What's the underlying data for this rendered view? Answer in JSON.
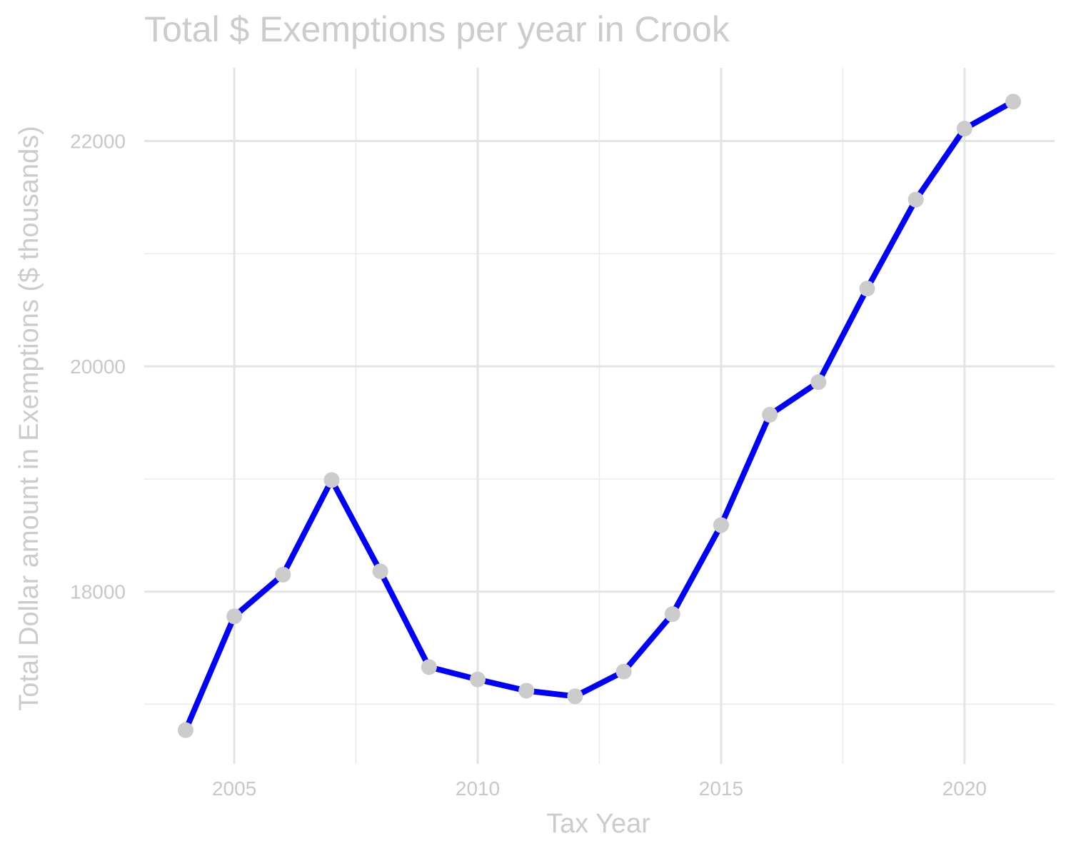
{
  "chart_data": {
    "type": "line",
    "title": "Total $ Exemptions per year in Crook",
    "xlabel": "Tax Year",
    "ylabel": "Total Dollar amount in Exemptions ($ thousands)",
    "xlim": [
      2003.15,
      2021.85
    ],
    "ylim": [
      16470,
      22650
    ],
    "x_ticks": [
      2005,
      2010,
      2015,
      2020
    ],
    "y_ticks": [
      18000,
      20000,
      22000
    ],
    "x_minor": [
      2007.5,
      2012.5,
      2017.5
    ],
    "y_minor": [
      17000,
      19000,
      21000
    ],
    "grid": true,
    "line_color": "#0000ff",
    "point_color": "#cccccc",
    "x": [
      2004,
      2005,
      2006,
      2007,
      2008,
      2009,
      2010,
      2011,
      2012,
      2013,
      2014,
      2015,
      2016,
      2017,
      2018,
      2019,
      2020,
      2021
    ],
    "series": [
      {
        "values": [
          16770,
          17780,
          18150,
          18990,
          18180,
          17330,
          17220,
          17120,
          17070,
          17290,
          17800,
          18590,
          19570,
          19860,
          20690,
          21480,
          22110,
          22350
        ]
      }
    ]
  }
}
